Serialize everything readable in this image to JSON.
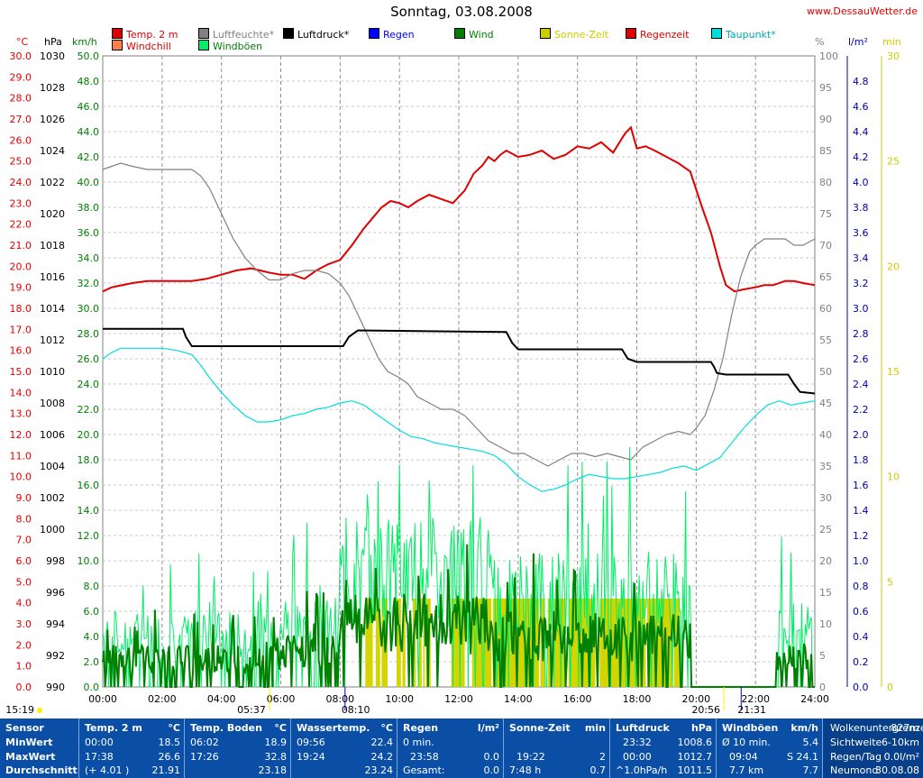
{
  "header": {
    "title": "Sonntag, 03.08.2008",
    "site": "www.DessauWetter.de"
  },
  "legend": [
    {
      "label": "Temp. 2 m",
      "color": "#e00000"
    },
    {
      "label": "Luftfeuchte*",
      "color": "#808080"
    },
    {
      "label": "Luftdruck*",
      "color": "#000000"
    },
    {
      "label": "Regen",
      "color": "#0000ff"
    },
    {
      "label": "Wind",
      "color": "#008000"
    },
    {
      "label": "Sonne-Zeit",
      "color": "#cccc00"
    },
    {
      "label": "Regenzeit",
      "color": "#e00000"
    },
    {
      "label": "Taupunkt*",
      "color": "#00dddd"
    },
    {
      "label": "Windchill",
      "color": "#ff8040"
    },
    {
      "label": "Windböen",
      "color": "#00ee66"
    }
  ],
  "units": {
    "temp": "°C",
    "pressure": "hPa",
    "wind": "km/h",
    "humidity": "%",
    "rain": "l/m²",
    "minutes": "min"
  },
  "chart_data": {
    "type": "line",
    "x_ticks": [
      "00:00",
      "02:00",
      "04:00",
      "06:00",
      "08:00",
      "10:00",
      "12:00",
      "14:00",
      "16:00",
      "18:00",
      "20:00",
      "22:00",
      "24:00"
    ],
    "xlim_hours": [
      0,
      24
    ],
    "axes": {
      "temp_c": {
        "range": [
          0,
          30
        ],
        "step": 1
      },
      "pressure_hpa": {
        "range": [
          990,
          1030
        ],
        "step": 2
      },
      "wind_kmh": {
        "range": [
          0,
          50
        ],
        "step": 2
      },
      "humidity_pct": {
        "range": [
          0,
          100
        ],
        "step": 5
      },
      "rain_lm2": {
        "range": [
          0,
          5
        ],
        "step": 0.2
      },
      "minutes": {
        "range": [
          0,
          30
        ],
        "step": 5
      }
    },
    "sun_markers": {
      "sunrise": "05:37",
      "sunset": "20:56",
      "moonrise": "08:10",
      "moonset": "21:31",
      "left_time": "15:19"
    },
    "series": [
      {
        "name": "Temp. 2 m",
        "axis": "temp_c",
        "color": "#e00000",
        "x": [
          0,
          0.3,
          1,
          1.5,
          2,
          2.5,
          3,
          3.5,
          4,
          4.5,
          5,
          5.3,
          5.6,
          6,
          6.4,
          6.8,
          7.2,
          7.6,
          8,
          8.4,
          8.8,
          9.1,
          9.4,
          9.7,
          10,
          10.3,
          10.6,
          11,
          11.4,
          11.8,
          12.2,
          12.5,
          12.8,
          13,
          13.2,
          13.4,
          13.6,
          14,
          14.4,
          14.8,
          15.2,
          15.6,
          16,
          16.4,
          16.8,
          17.2,
          17.6,
          17.8,
          18,
          18.3,
          18.6,
          19,
          19.4,
          19.8,
          20.2,
          20.5,
          20.8,
          21,
          21.3,
          21.6,
          22,
          22.3,
          22.6,
          23,
          23.3,
          23.6,
          24
        ],
        "values": [
          18.8,
          19,
          19.2,
          19.3,
          19.3,
          19.3,
          19.3,
          19.4,
          19.6,
          19.8,
          19.9,
          19.8,
          19.7,
          19.6,
          19.6,
          19.4,
          19.8,
          20.1,
          20.3,
          21,
          21.8,
          22.3,
          22.8,
          23.1,
          23,
          22.8,
          23.1,
          23.4,
          23.2,
          23,
          23.6,
          24.4,
          24.8,
          25.2,
          25,
          25.3,
          25.5,
          25.2,
          25.3,
          25.5,
          25.1,
          25.3,
          25.7,
          25.6,
          25.9,
          25.4,
          26.3,
          26.6,
          25.6,
          25.7,
          25.5,
          25.2,
          24.9,
          24.5,
          22.8,
          21.6,
          20,
          19.1,
          18.8,
          18.9,
          19,
          19.1,
          19.1,
          19.3,
          19.3,
          19.2,
          19.1
        ]
      },
      {
        "name": "Luftfeuchte*",
        "axis": "humidity_pct",
        "color": "#808080",
        "x": [
          0,
          0.3,
          0.6,
          1,
          1.5,
          2,
          2.5,
          3,
          3.3,
          3.6,
          4,
          4.4,
          4.8,
          5.2,
          5.6,
          6,
          6.4,
          6.8,
          7.2,
          7.6,
          8,
          8.3,
          8.6,
          9,
          9.3,
          9.6,
          10,
          10.3,
          10.6,
          11,
          11.4,
          11.8,
          12.2,
          12.6,
          13,
          13.4,
          13.8,
          14.2,
          14.6,
          15,
          15.4,
          15.8,
          16.2,
          16.6,
          17,
          17.4,
          17.8,
          18.2,
          18.6,
          19,
          19.4,
          19.8,
          20,
          20.3,
          20.6,
          20.9,
          21.2,
          21.5,
          21.8,
          22,
          22.3,
          22.6,
          23,
          23.3,
          23.6,
          24
        ],
        "values": [
          82,
          82.5,
          83,
          82.5,
          82,
          82,
          82,
          82,
          81,
          79,
          75,
          71,
          68,
          66,
          64.5,
          64.5,
          65.5,
          66,
          66,
          65.5,
          64,
          62,
          59,
          55,
          52,
          50,
          49,
          48,
          46,
          45,
          44,
          44,
          43,
          41,
          39,
          38,
          37,
          37,
          36,
          35,
          36,
          37,
          37,
          36.5,
          37,
          36.5,
          36,
          38,
          39,
          40,
          40.5,
          40,
          41,
          43,
          47,
          52,
          59,
          65,
          69,
          70,
          71,
          71,
          71,
          70,
          70,
          71
        ]
      },
      {
        "name": "Luftdruck*",
        "axis": "pressure_hpa",
        "color": "#000000",
        "x": [
          0,
          2.7,
          2.8,
          3,
          8.1,
          8.3,
          8.6,
          13.6,
          13.8,
          14,
          17.5,
          17.7,
          18,
          20.5,
          20.6,
          20.7,
          21,
          23.1,
          23.3,
          23.5,
          24
        ],
        "values": [
          1012.7,
          1012.7,
          1012.2,
          1011.6,
          1011.6,
          1012.2,
          1012.6,
          1012.5,
          1011.8,
          1011.4,
          1011.4,
          1010.8,
          1010.6,
          1010.6,
          1010.3,
          1009.9,
          1009.8,
          1009.8,
          1009.2,
          1008.7,
          1008.6
        ]
      },
      {
        "name": "Taupunkt*",
        "axis": "temp_c",
        "color": "#00dddd",
        "x": [
          0,
          0.3,
          0.6,
          1,
          1.5,
          2,
          2.5,
          3,
          3.3,
          3.6,
          4,
          4.4,
          4.8,
          5.2,
          5.6,
          6,
          6.4,
          6.8,
          7.2,
          7.6,
          8,
          8.4,
          8.8,
          9.2,
          9.6,
          10,
          10.4,
          10.8,
          11.2,
          11.6,
          12,
          12.4,
          12.8,
          13.2,
          13.6,
          14,
          14.4,
          14.8,
          15.2,
          15.6,
          16,
          16.4,
          16.8,
          17.2,
          17.6,
          18,
          18.4,
          18.8,
          19.2,
          19.6,
          20,
          20.4,
          20.8,
          21.2,
          21.6,
          22,
          22.4,
          22.8,
          23.2,
          23.6,
          24
        ],
        "values": [
          15.6,
          15.9,
          16.1,
          16.1,
          16.1,
          16.1,
          16.0,
          15.8,
          15.3,
          14.7,
          14,
          13.4,
          12.9,
          12.6,
          12.6,
          12.7,
          12.9,
          13,
          13.2,
          13.3,
          13.5,
          13.6,
          13.4,
          13,
          12.6,
          12.2,
          11.9,
          11.8,
          11.6,
          11.5,
          11.4,
          11.3,
          11.2,
          11.0,
          10.6,
          10,
          9.6,
          9.3,
          9.4,
          9.6,
          9.9,
          10.1,
          10,
          9.9,
          9.9,
          10,
          10.1,
          10.2,
          10.4,
          10.5,
          10.3,
          10.6,
          10.9,
          11.6,
          12.3,
          12.9,
          13.4,
          13.6,
          13.4,
          13.5,
          13.6
        ]
      },
      {
        "name": "Windböen",
        "axis": "wind_kmh",
        "color": "#00ee66",
        "sampled": true,
        "base_kmh": 9,
        "peak_kmh": 23.9
      },
      {
        "name": "Wind",
        "axis": "wind_kmh",
        "color": "#008000",
        "sampled": true,
        "base_kmh": 5,
        "peak_kmh": 14
      }
    ],
    "sunshine_blocks_hours": [
      [
        8.85,
        9.1
      ],
      [
        9.2,
        9.35
      ],
      [
        9.4,
        9.6
      ],
      [
        9.9,
        10.05
      ],
      [
        10.1,
        10.2
      ],
      [
        10.45,
        10.55
      ],
      [
        10.65,
        10.75
      ],
      [
        10.8,
        10.85
      ],
      [
        10.9,
        11.05
      ],
      [
        11.75,
        12.2
      ],
      [
        12.45,
        13.1
      ],
      [
        13.15,
        14.7
      ],
      [
        14.75,
        14.9
      ],
      [
        15,
        15.1
      ],
      [
        15.2,
        15.6
      ],
      [
        15.7,
        16.6
      ],
      [
        16.75,
        18.3
      ],
      [
        18.35,
        19.2
      ],
      [
        19.25,
        19.45
      ]
    ]
  },
  "stats": {
    "sensor": {
      "head": "Sensor",
      "min": "MinWert",
      "max": "MaxWert",
      "avg": "Durchschnitt"
    },
    "temp2m": {
      "head": "Temp. 2 m",
      "unit": "°C",
      "min_t": "00:00",
      "min_v": "18.5",
      "max_t": "17:38",
      "max_v": "26.6",
      "avg_t": "(+ 4.01 )",
      "avg_v": "21.91"
    },
    "tempboden": {
      "head": "Temp. Boden",
      "unit": "°C",
      "min_t": "06:02",
      "min_v": "18.9",
      "max_t": "17:26",
      "max_v": "32.8",
      "avg_v": "23.18"
    },
    "wasser": {
      "head": "Wassertemp.",
      "unit": "°C",
      "min_t": "09:56",
      "min_v": "22.4",
      "max_t": "19:24",
      "max_v": "24.2",
      "avg_v": "23.24"
    },
    "regen": {
      "head": "Regen",
      "unit": "l/m²",
      "r1": "0 min.",
      "r2_t": "23:58",
      "r2_v": "0.0",
      "r3_t": "Gesamt:",
      "r3_v": "0.0"
    },
    "sonne": {
      "head": "Sonne-Zeit",
      "unit": "min",
      "r2_t": "19:22",
      "r2_v": "2",
      "r3_t": "7:48 h",
      "r3_v": "0.7"
    },
    "druck": {
      "head": "Luftdruck",
      "unit": "hPa",
      "min_t": "23:32",
      "min_v": "1008.6",
      "max_t": "00:00",
      "max_v": "1012.7",
      "avg_t": "^1.0hPa/h",
      "avg_v": "1011.5"
    },
    "boen": {
      "head": "Windböen",
      "unit": "km/h",
      "r1_t": "Ø 10 min.",
      "r1_v": "5.4",
      "r2_t": "09:04",
      "r2_v": "S 24.1",
      "r3_t": "7.7 km",
      "r3_v": "7.7"
    },
    "misc": {
      "l1": "Wolkenuntergrenze",
      "v1": "827m",
      "l2": "Sichtweite",
      "v2": "6-10km",
      "l3": "Regen/Tag",
      "v3": "0.0l/m²",
      "l4": "Neumond",
      "v4": "30.08.08"
    }
  }
}
